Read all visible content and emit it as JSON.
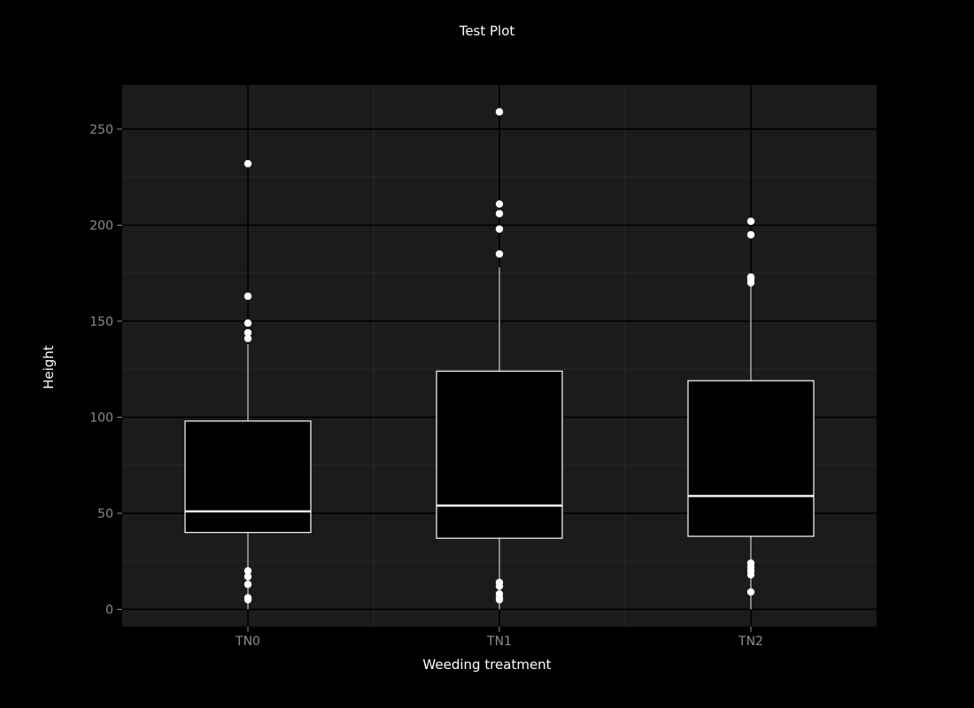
{
  "chart_data": {
    "type": "box",
    "title": "Test Plot",
    "xlabel": "Weeding treatment",
    "ylabel": "Height",
    "ylim": [
      -9,
      273
    ],
    "y_ticks": [
      0,
      50,
      100,
      150,
      200,
      250
    ],
    "y_tick_labels": [
      "0",
      "50",
      "100",
      "150",
      "200",
      "250"
    ],
    "grid": true,
    "legend": "none",
    "colors": {
      "background": "#000000",
      "panel": "#1b1b1b",
      "grid_major": "#000000",
      "grid_minor": "#2a2a2a",
      "box_fill": "#000000",
      "box_line": "#ffffff",
      "text": "#ffffff",
      "tick_text": "#8c8c8c"
    },
    "categories": [
      "TN0",
      "TN1",
      "TN2"
    ],
    "boxes": [
      {
        "category": "TN0",
        "whisker_low": 0,
        "q1": 40,
        "median": 51,
        "q3": 98,
        "whisker_high": 138,
        "outliers": [
          232,
          163,
          149,
          144,
          141,
          20,
          17,
          13,
          6,
          5
        ]
      },
      {
        "category": "TN1",
        "whisker_low": 0,
        "q1": 37,
        "median": 54,
        "q3": 124,
        "whisker_high": 178,
        "outliers": [
          259,
          211,
          206,
          198,
          185,
          14,
          12,
          8,
          6,
          5
        ]
      },
      {
        "category": "TN2",
        "whisker_low": 0,
        "q1": 38,
        "median": 59,
        "q3": 119,
        "whisker_high": 169,
        "outliers": [
          202,
          195,
          173,
          172,
          170,
          24,
          22,
          20,
          18,
          9
        ]
      }
    ]
  }
}
